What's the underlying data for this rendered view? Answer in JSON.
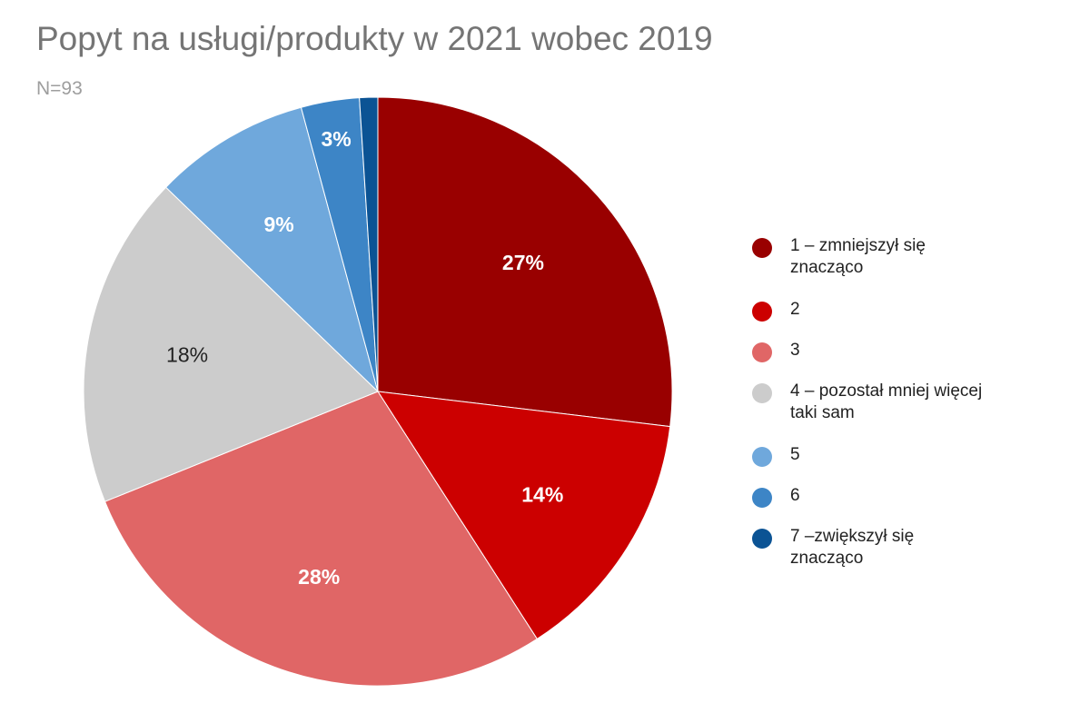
{
  "chart_data": {
    "type": "pie",
    "title": "Popyt na usługi/produkty w 2021 wobec 2019",
    "subtitle": "N=93",
    "slices": [
      {
        "label": "1 – zmniejszył się znacząco",
        "value": 26.9,
        "display": "27%",
        "color": "#990000",
        "label_color": "#ffffff"
      },
      {
        "label": "2",
        "value": 14.0,
        "display": "14%",
        "color": "#cc0000",
        "label_color": "#ffffff"
      },
      {
        "label": "3",
        "value": 28.0,
        "display": "28%",
        "color": "#e06666",
        "label_color": "#ffffff"
      },
      {
        "label": "4 – pozostał mniej więcej taki sam",
        "value": 18.3,
        "display": "18%",
        "color": "#cccccc",
        "label_color": "#222222"
      },
      {
        "label": "5",
        "value": 8.6,
        "display": "9%",
        "color": "#6fa8dc",
        "label_color": "#ffffff"
      },
      {
        "label": "6",
        "value": 3.2,
        "display": "3%",
        "color": "#3d85c6",
        "label_color": "#ffffff"
      },
      {
        "label": "7 –zwiększył się znacząco",
        "value": 1.0,
        "display": "",
        "color": "#0b5394",
        "label_color": "#ffffff"
      }
    ],
    "legend_position": "right",
    "start_angle": "12 o'clock",
    "direction": "clockwise"
  }
}
